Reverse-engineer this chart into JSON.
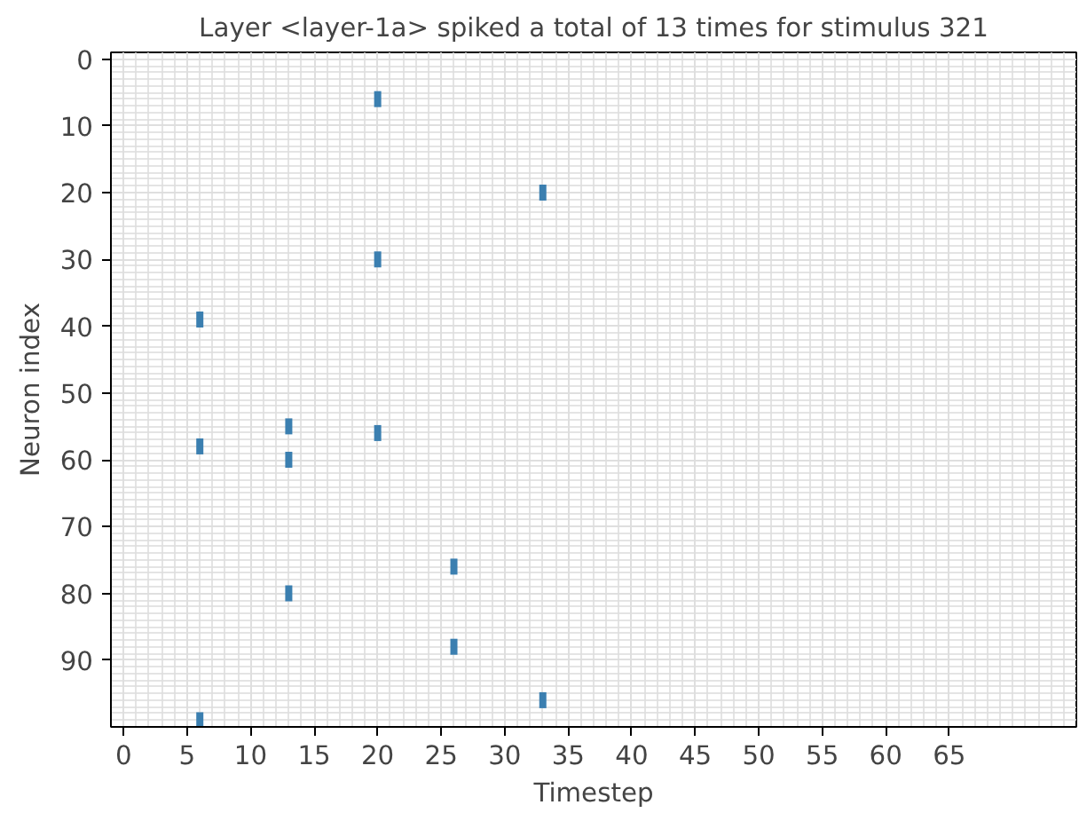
{
  "chart_data": {
    "type": "scatter",
    "title": "Layer <layer-1a> spiked a total of 13 times for stimulus 321",
    "xlabel": "Timestep",
    "ylabel": "Neuron index",
    "x": [
      20,
      33,
      20,
      6,
      13,
      20,
      6,
      13,
      26,
      13,
      26,
      33,
      6
    ],
    "series": [
      {
        "color": "#3b7fb0",
        "values": [
          6,
          20,
          30,
          39,
          55,
          56,
          58,
          60,
          76,
          80,
          88,
          96,
          99
        ]
      }
    ],
    "xlim": [
      -1,
      75
    ],
    "ylim": [
      100,
      -1
    ],
    "xticks": [
      0,
      5,
      10,
      15,
      20,
      25,
      30,
      35,
      40,
      45,
      50,
      55,
      60,
      65
    ],
    "yticks": [
      0,
      10,
      20,
      30,
      40,
      50,
      60,
      70,
      80,
      90
    ],
    "grid": true
  }
}
